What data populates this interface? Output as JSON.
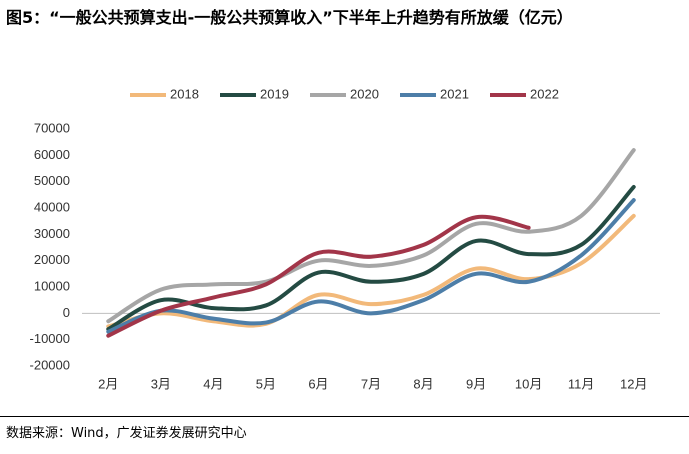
{
  "chart_data": {
    "type": "line",
    "title": "图5：“一般公共预算支出-一般公共预算收入”下半年上升趋势有所放缓（亿元）",
    "source": "数据来源：Wind，广发证券发展研究中心",
    "categories": [
      "2月",
      "3月",
      "4月",
      "5月",
      "6月",
      "7月",
      "8月",
      "9月",
      "10月",
      "11月",
      "12月"
    ],
    "series": [
      {
        "name": "2018",
        "color": "#f2b97a",
        "values": [
          -5000,
          0,
          -3000,
          -4000,
          7000,
          3500,
          7000,
          17000,
          13000,
          19000,
          37000
        ]
      },
      {
        "name": "2019",
        "color": "#244b43",
        "values": [
          -6000,
          5000,
          2000,
          3000,
          15500,
          12000,
          15000,
          27500,
          22500,
          26000,
          48000
        ]
      },
      {
        "name": "2020",
        "color": "#a6a6a6",
        "values": [
          -3000,
          9000,
          11000,
          12000,
          20000,
          18000,
          22000,
          34000,
          31000,
          37000,
          62000
        ]
      },
      {
        "name": "2021",
        "color": "#4d7ea8",
        "values": [
          -7000,
          1000,
          -2000,
          -3500,
          4500,
          0,
          5000,
          15000,
          12000,
          22000,
          43000
        ]
      },
      {
        "name": "2022",
        "color": "#a23549",
        "values": [
          -8500,
          1000,
          6000,
          11000,
          23000,
          21500,
          26000,
          36500,
          32500,
          null,
          null
        ]
      }
    ],
    "ylim": [
      -20000,
      70000
    ],
    "yticks": [
      -20000,
      -10000,
      0,
      10000,
      20000,
      30000,
      40000,
      50000,
      60000,
      70000
    ],
    "legend": "top"
  }
}
